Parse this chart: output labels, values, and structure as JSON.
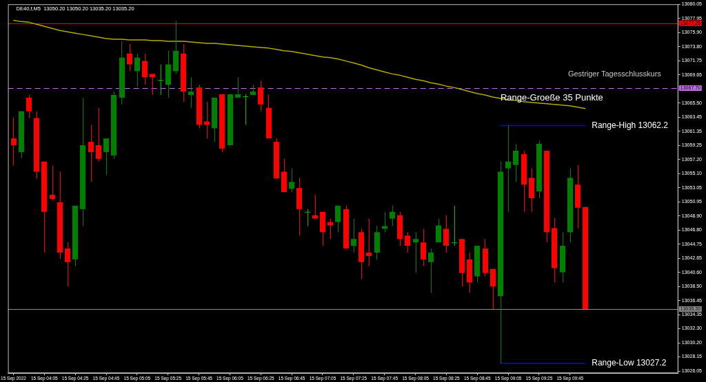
{
  "chart_data": {
    "type": "candlestick",
    "title": "DE40,f,M5  13050.20 13050.20 13035.20 13035.20",
    "categories": [
      "15 Sep 2022",
      null,
      null,
      null,
      "15 Sep 04:05",
      null,
      null,
      null,
      "15 Sep 04:25",
      null,
      null,
      null,
      "15 Sep 04:45",
      null,
      null,
      null,
      "15 Sep 05:05",
      null,
      null,
      null,
      "15 Sep 05:25",
      null,
      null,
      null,
      "15 Sep 05:45",
      null,
      null,
      null,
      "15 Sep 06:05",
      null,
      null,
      null,
      "15 Sep 06:25",
      null,
      null,
      null,
      "15 Sep 06:45",
      null,
      null,
      null,
      "15 Sep 07:05",
      null,
      null,
      null,
      "15 Sep 07:25",
      null,
      null,
      null,
      "15 Sep 07:45",
      null,
      null,
      null,
      "15 Sep 08:05",
      null,
      null,
      null,
      "15 Sep 08:25",
      null,
      null,
      null,
      "15 Sep 08:45",
      null,
      null,
      null,
      "15 Sep 09:05",
      null,
      null,
      null,
      "15 Sep 09:25",
      null,
      null,
      null,
      "15 Sep 09:45",
      null,
      null
    ],
    "ohlc": [
      [
        13060.3,
        13063.4,
        13056.3,
        13059.3
      ],
      [
        13058.3,
        13064.3,
        13057.4,
        13064.3
      ],
      [
        13066.3,
        13066.7,
        13063.3,
        13064.3
      ],
      [
        13063.3,
        13064.3,
        13054.4,
        13055.4
      ],
      [
        13056.9,
        13056.9,
        13043.5,
        13049.5
      ],
      [
        13052.0,
        13056.3,
        13051.2,
        13051.4
      ],
      [
        13050.9,
        13055.4,
        13042.6,
        13043.5
      ],
      [
        13044.1,
        13045.0,
        13038.5,
        13042.1
      ],
      [
        13042.5,
        13050.4,
        13041.5,
        13050.4
      ],
      [
        13049.9,
        13066.3,
        13047.4,
        13059.3
      ],
      [
        13059.8,
        13062.3,
        13053.9,
        13058.3
      ],
      [
        13059.3,
        13064.8,
        13056.9,
        13057.3
      ],
      [
        13058.3,
        13060.3,
        13054.9,
        13060.3
      ],
      [
        13057.8,
        13067.2,
        13057.3,
        13066.7
      ],
      [
        13066.3,
        13074.6,
        13065.3,
        13072.2
      ],
      [
        13072.8,
        13074.2,
        13070.2,
        13071.2
      ],
      [
        13070.2,
        13072.8,
        13067.9,
        13072.2
      ],
      [
        13071.7,
        13072.8,
        13068.2,
        13069.3
      ],
      [
        13069.8,
        13069.8,
        13066.7,
        13069.3
      ],
      [
        13068.8,
        13071.2,
        13066.7,
        13068.9
      ],
      [
        13068.2,
        13073.2,
        13066.3,
        13071.2
      ],
      [
        13070.2,
        13077.6,
        13069.8,
        13073.2
      ],
      [
        13072.8,
        13074.2,
        13065.7,
        13067.2
      ],
      [
        13066.7,
        13069.3,
        13064.8,
        13067.2
      ],
      [
        13067.8,
        13068.2,
        13061.8,
        13062.3
      ],
      [
        13062.8,
        13065.7,
        13060.3,
        13062.3
      ],
      [
        13061.8,
        13066.3,
        13059.8,
        13066.3
      ],
      [
        13066.8,
        13066.8,
        13058.3,
        13058.8
      ],
      [
        13059.3,
        13066.8,
        13059.3,
        13066.8
      ],
      [
        13066.3,
        13069.3,
        13066.3,
        13066.8
      ],
      [
        13066.4,
        13066.8,
        13062.3,
        13066.5
      ],
      [
        13066.7,
        13068.2,
        13066.7,
        13067.2
      ],
      [
        13067.8,
        13068.8,
        13064.3,
        13065.3
      ],
      [
        13064.8,
        13066.8,
        13060.3,
        13060.3
      ],
      [
        13059.8,
        13060.3,
        13054.4,
        13054.4
      ],
      [
        13055.4,
        13057.3,
        13052.4,
        13052.4
      ],
      [
        13052.9,
        13055.9,
        13052.4,
        13053.9
      ],
      [
        13053.0,
        13054.5,
        13046.0,
        13049.9
      ],
      [
        13049.4,
        13049.9,
        13047.4,
        13049.5
      ],
      [
        13049.0,
        13052.0,
        13048.5,
        13048.5
      ],
      [
        13049.5,
        13049.5,
        13044.5,
        13046.5
      ],
      [
        13048.0,
        13048.5,
        13045.5,
        13047.5
      ],
      [
        13048.0,
        13050.4,
        13046.5,
        13050.4
      ],
      [
        13049.9,
        13050.4,
        13044.1,
        13044.1
      ],
      [
        13044.5,
        13048.5,
        13043.5,
        13045.5
      ],
      [
        13046.5,
        13047.0,
        13039.6,
        13042.1
      ],
      [
        13043.5,
        13048.5,
        13041.5,
        13043.0
      ],
      [
        13043.5,
        13047.4,
        13042.5,
        13046.5
      ],
      [
        13047.0,
        13049.5,
        13046.5,
        13047.4
      ],
      [
        13048.5,
        13050.4,
        13047.4,
        13049.5
      ],
      [
        13049.0,
        13049.5,
        13044.5,
        13045.5
      ],
      [
        13046.0,
        13046.5,
        13043.5,
        13044.5
      ],
      [
        13045.0,
        13046.5,
        13040.5,
        13045.5
      ],
      [
        13045.0,
        13047.0,
        13041.5,
        13042.5
      ],
      [
        13042.1,
        13044.1,
        13037.6,
        13043.5
      ],
      [
        13045.0,
        13048.5,
        13045.0,
        13047.5
      ],
      [
        13047.0,
        13049.0,
        13043.5,
        13044.5
      ],
      [
        13044.9,
        13050.4,
        13044.5,
        13045.0
      ],
      [
        13045.5,
        13045.5,
        13038.5,
        13040.5
      ],
      [
        13042.5,
        13043.5,
        13037.6,
        13039.1
      ],
      [
        13040.0,
        13044.5,
        13039.1,
        13044.5
      ],
      [
        13044.1,
        13045.5,
        13040.0,
        13040.5
      ],
      [
        13041.1,
        13041.1,
        13035.2,
        13038.5
      ],
      [
        13037.1,
        13056.9,
        13027.2,
        13055.4
      ],
      [
        13055.9,
        13062.2,
        13049.5,
        13056.9
      ],
      [
        13056.4,
        13059.5,
        13053.9,
        13058.5
      ],
      [
        13058.0,
        13058.5,
        13049.5,
        13053.5
      ],
      [
        13054.5,
        13055.9,
        13049.5,
        13051.5
      ],
      [
        13052.5,
        13060.0,
        13051.5,
        13059.5
      ],
      [
        13058.5,
        13058.5,
        13045.0,
        13046.5
      ],
      [
        13047.1,
        13048.6,
        13039.1,
        13041.2
      ],
      [
        13040.6,
        13046.5,
        13039.1,
        13044.5
      ],
      [
        13046.5,
        13055.9,
        13045.0,
        13054.5
      ],
      [
        13053.5,
        13056.4,
        13047.1,
        13050.1
      ],
      [
        13050.2,
        13050.2,
        13035.2,
        13035.2
      ]
    ],
    "colors": [
      "#ff0000",
      "#008000",
      "#ff0000",
      "#ff0000",
      "#ff0000",
      "#ff0000",
      "#ff0000",
      "#ff0000",
      "#008000",
      "#008000",
      "#ff0000",
      "#ff0000",
      "#008000",
      "#008000",
      "#008000",
      "#ff0000",
      "#008000",
      "#ff0000",
      "#ff0000",
      "#00c000",
      "#008000",
      "#008000",
      "#ff0000",
      "#008000",
      "#ff0000",
      "#ff0000",
      "#008000",
      "#ff0000",
      "#008000",
      "#008000",
      "#00c000",
      "#008000",
      "#ff0000",
      "#ff0000",
      "#ff0000",
      "#ff0000",
      "#008000",
      "#ff0000",
      "#00c000",
      "#ff0000",
      "#ff0000",
      "#ff0000",
      "#008000",
      "#ff0000",
      "#008000",
      "#ff0000",
      "#ff0000",
      "#008000",
      "#008000",
      "#008000",
      "#ff0000",
      "#ff0000",
      "#008000",
      "#ff0000",
      "#008000",
      "#008000",
      "#ff0000",
      "#00c000",
      "#ff0000",
      "#ff0000",
      "#008000",
      "#ff0000",
      "#ff0000",
      "#008000",
      "#008000",
      "#008000",
      "#ff0000",
      "#ff0000",
      "#008000",
      "#ff0000",
      "#ff0000",
      "#008000",
      "#008000",
      "#ff0000",
      "#ff0000"
    ],
    "series": [
      {
        "type": "line",
        "color": "#b4aa00",
        "values": [
          13077.7,
          13077.5,
          13077.4,
          13077.1,
          13076.8,
          13076.5,
          13076.2,
          13076.0,
          13075.8,
          13075.6,
          13075.4,
          13075.2,
          13075.0,
          13074.9,
          13074.9,
          13074.8,
          13074.8,
          13074.8,
          13074.7,
          13074.7,
          13074.6,
          13074.6,
          13074.6,
          13074.5,
          13074.4,
          13074.3,
          13074.3,
          13074.2,
          13074.1,
          13074.0,
          13073.9,
          13073.8,
          13073.7,
          13073.6,
          13073.4,
          13073.2,
          13073.1,
          13072.9,
          13072.7,
          13072.5,
          13072.3,
          13072.2,
          13072.0,
          13071.7,
          13071.4,
          13071.1,
          13070.7,
          13070.4,
          13070.1,
          13069.8,
          13069.6,
          13069.3,
          13069.0,
          13068.8,
          13068.5,
          13068.3,
          13068.0,
          13067.8,
          13067.5,
          13067.2,
          13066.9,
          13066.7,
          13066.4,
          13066.2,
          13066.0,
          13065.9,
          13065.7,
          13065.6,
          13065.5,
          13065.4,
          13065.3,
          13065.2,
          13065.1,
          13064.9,
          13064.7
        ]
      },
      {
        "type": "line",
        "color": "#0000ff",
        "values": [
          null,
          null,
          null,
          null,
          null,
          null,
          null,
          null,
          null,
          null,
          null,
          null,
          null,
          null,
          null,
          null,
          null,
          null,
          null,
          null,
          null,
          null,
          null,
          null,
          null,
          null,
          null,
          null,
          null,
          null,
          null,
          null,
          null,
          null,
          null,
          null,
          null,
          null,
          null,
          null,
          null,
          null,
          null,
          null,
          null,
          null,
          null,
          null,
          null,
          null,
          null,
          null,
          null,
          null,
          null,
          null,
          null,
          null,
          null,
          null,
          null,
          null,
          null,
          13062.2,
          13062.2,
          13062.2,
          13062.2,
          13062.2,
          13062.2,
          13062.2,
          13062.2,
          13062.2,
          13062.2,
          13062.2,
          13062.2
        ]
      },
      {
        "type": "line",
        "color": "#0000ff",
        "values": [
          null,
          null,
          null,
          null,
          null,
          null,
          null,
          null,
          null,
          null,
          null,
          null,
          null,
          null,
          null,
          null,
          null,
          null,
          null,
          null,
          null,
          null,
          null,
          null,
          null,
          null,
          null,
          null,
          null,
          null,
          null,
          null,
          null,
          null,
          null,
          null,
          null,
          null,
          null,
          null,
          null,
          null,
          null,
          null,
          null,
          null,
          null,
          null,
          null,
          null,
          null,
          null,
          null,
          null,
          null,
          null,
          null,
          null,
          null,
          null,
          null,
          null,
          null,
          13027.2,
          13027.2,
          13027.2,
          13027.2,
          13027.2,
          13027.2,
          13027.2,
          13027.2,
          13027.2,
          13027.2,
          13027.2,
          13027.2
        ]
      }
    ],
    "ylim": [
      13025.75,
      13080.05
    ],
    "yticks": [
      {
        "value": 13026.05,
        "label": "13026.05"
      },
      {
        "value": 13028.15,
        "label": "13028.15"
      },
      {
        "value": 13030.2,
        "label": "13030.20"
      },
      {
        "value": 13032.3,
        "label": "13032.30"
      },
      {
        "value": 13034.35,
        "label": "13034.35"
      },
      {
        "value": 13036.45,
        "label": "13036.45"
      },
      {
        "value": 13038.5,
        "label": "13038.50"
      },
      {
        "value": 13040.6,
        "label": "13040.60"
      },
      {
        "value": 13042.65,
        "label": "13042.65"
      },
      {
        "value": 13044.75,
        "label": "13044.75"
      },
      {
        "value": 13046.8,
        "label": "13046.80"
      },
      {
        "value": 13048.9,
        "label": "13048.90"
      },
      {
        "value": 13050.95,
        "label": "13050.95"
      },
      {
        "value": 13053.05,
        "label": "13053.05"
      },
      {
        "value": 13055.1,
        "label": "13055.10"
      },
      {
        "value": 13057.2,
        "label": "13057.20"
      },
      {
        "value": 13059.25,
        "label": "13059.25"
      },
      {
        "value": 13061.35,
        "label": "13061.35"
      },
      {
        "value": 13063.45,
        "label": "13063.45"
      },
      {
        "value": 13065.5,
        "label": "13065.50"
      },
      {
        "value": 13069.65,
        "label": "13069.65"
      },
      {
        "value": 13071.75,
        "label": "13071.75"
      },
      {
        "value": 13073.8,
        "label": "13073.80"
      },
      {
        "value": 13075.9,
        "label": "13075.90"
      },
      {
        "value": 13077.95,
        "label": "13077.95"
      },
      {
        "value": 13080.05,
        "label": "13080.05"
      }
    ],
    "ref_lines": [
      {
        "axis": "y",
        "value": 13077.25,
        "label": "13077.25",
        "color": "#ff0000",
        "line_style": "solid"
      },
      {
        "axis": "y",
        "value": 13067.7,
        "label": "13067.70",
        "color": "#c070e0",
        "line_style": "dashed"
      },
      {
        "axis": "y",
        "value": 13035.2,
        "label": "13035.20",
        "color": "#8c8c8c",
        "line_style": "solid"
      }
    ],
    "annotations": [
      "Range-High 13062.2",
      "Range-Low 13027.2",
      "Range-Groeße 35 Punkte",
      "Gestriger Tagesschlusskurs"
    ],
    "legend": false
  }
}
